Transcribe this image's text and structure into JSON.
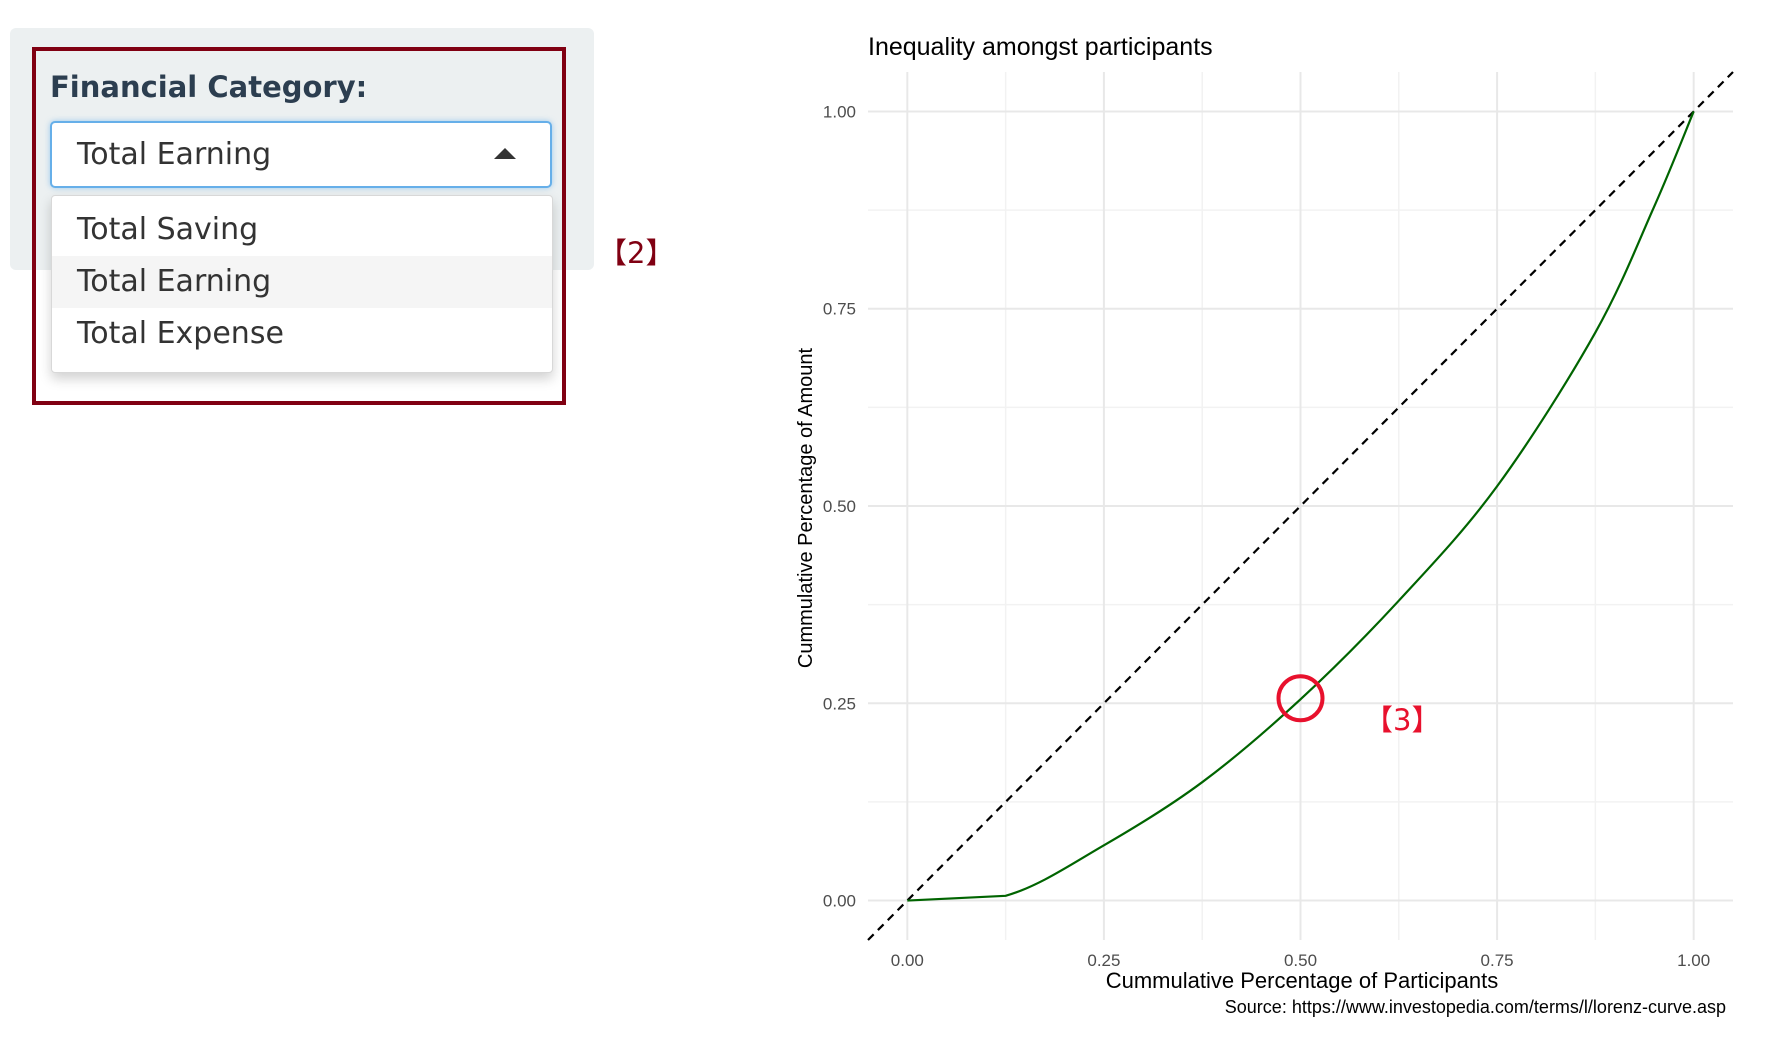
{
  "filter": {
    "label": "Financial Category:",
    "selected": "Total Earning",
    "options": [
      "Total Saving",
      "Total Earning",
      "Total Expense"
    ],
    "active_index": 1
  },
  "markers": {
    "dropdown": "【2】",
    "curve_point": "【3】"
  },
  "chart_data": {
    "type": "line",
    "title": "Inequality amongst participants",
    "xlabel": "Cummulative Percentage of Participants",
    "ylabel": "Cummulative Percentage of Amount",
    "caption": "Source: https://www.investopedia.com/terms/l/lorenz-curve.asp",
    "xlim": [
      -0.05,
      1.05
    ],
    "ylim": [
      -0.05,
      1.05
    ],
    "x_ticks": [
      "0.00",
      "0.25",
      "0.50",
      "0.75",
      "1.00"
    ],
    "y_ticks": [
      "0.00",
      "0.25",
      "0.50",
      "0.75",
      "1.00"
    ],
    "grid": true,
    "series": [
      {
        "style": "dashed",
        "color": "#000000",
        "x": [
          -0.05,
          1.05
        ],
        "y": [
          -0.05,
          1.05
        ]
      },
      {
        "style": "solid",
        "color": "#006400",
        "x": [
          0.0,
          0.125,
          0.25,
          0.375,
          0.5,
          0.625,
          0.75,
          0.875,
          0.95,
          1.0
        ],
        "y": [
          0.0,
          0.006,
          0.07,
          0.15,
          0.255,
          0.38,
          0.525,
          0.72,
          0.88,
          1.0
        ]
      }
    ],
    "highlight_point": {
      "x": 0.5,
      "y": 0.25,
      "color": "#e8112d"
    }
  }
}
